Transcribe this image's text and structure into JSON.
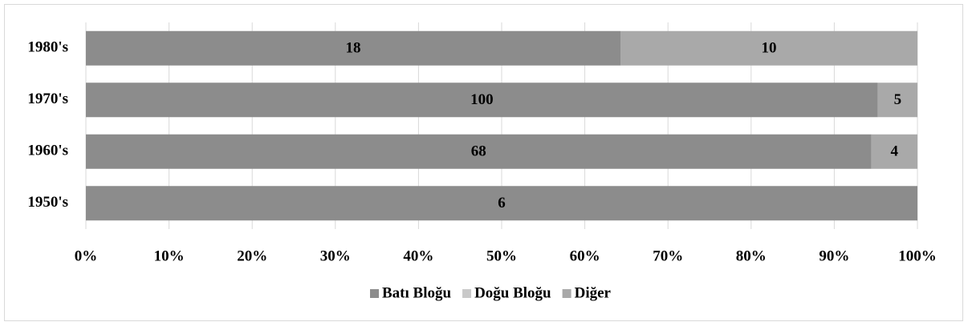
{
  "chart_data": {
    "type": "stacked-bar-100",
    "categories": [
      "1950's",
      "1960's",
      "1970's",
      "1980's"
    ],
    "series": [
      {
        "name": "Batı Bloğu",
        "color": "#8c8c8c",
        "values": [
          6,
          68,
          100,
          18
        ]
      },
      {
        "name": "Doğu Bloğu",
        "color": "#c9c9c9",
        "values": [
          0,
          0,
          0,
          0
        ]
      },
      {
        "name": "Diğer",
        "color": "#a9a9a9",
        "values": [
          0,
          4,
          5,
          10
        ]
      }
    ],
    "xlim": [
      0,
      100
    ],
    "xticks": [
      {
        "value": 0,
        "label": "0%"
      },
      {
        "value": 10,
        "label": "10%"
      },
      {
        "value": 20,
        "label": "20%"
      },
      {
        "value": 30,
        "label": "30%"
      },
      {
        "value": 40,
        "label": "40%"
      },
      {
        "value": 50,
        "label": "50%"
      },
      {
        "value": 60,
        "label": "60%"
      },
      {
        "value": 70,
        "label": "70%"
      },
      {
        "value": 80,
        "label": "80%"
      },
      {
        "value": 90,
        "label": "90%"
      },
      {
        "value": 100,
        "label": "100%"
      }
    ],
    "grid": true,
    "legend": "bottom"
  }
}
